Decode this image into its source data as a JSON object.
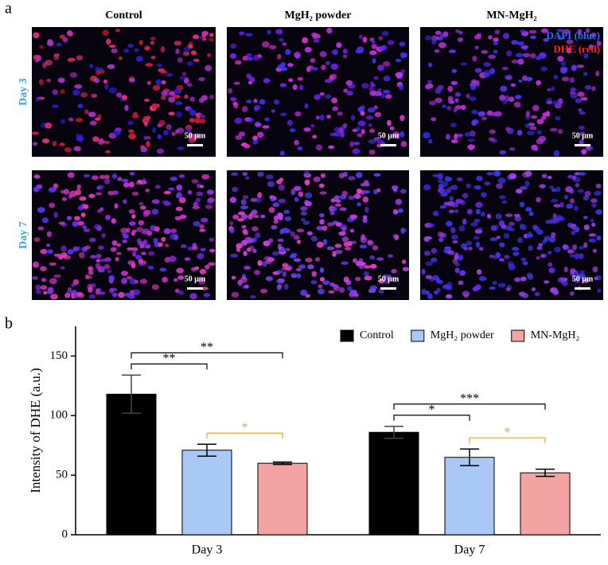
{
  "panel_a": {
    "label": "a",
    "columns": [
      "Control",
      "MgH₂ powder",
      "MN-MgH₂"
    ],
    "rows": [
      "Day 3",
      "Day 7"
    ],
    "legend": [
      "DAPI (blue)",
      "DHE (red)"
    ],
    "scale_bar": "50 μm"
  },
  "chart_data": {
    "type": "bar",
    "panel_label": "b",
    "ylabel": "Intensity of DHE (a.u.)",
    "categories": [
      "Day 3",
      "Day 7"
    ],
    "series": [
      {
        "name": "Control",
        "color": "#000000",
        "values": [
          118,
          86
        ],
        "errors": [
          16,
          5
        ]
      },
      {
        "name": "MgH₂ powder",
        "color": "#a9c8f4",
        "values": [
          71,
          65
        ],
        "errors": [
          5,
          7
        ]
      },
      {
        "name": "MN-MgH₂",
        "color": "#f4a3a3",
        "values": [
          60,
          52
        ],
        "errors": [
          1,
          3
        ]
      }
    ],
    "ylim": [
      0,
      175
    ],
    "yticks": [
      0,
      50,
      100,
      150
    ],
    "annotations": [
      {
        "text": "*",
        "category": 0,
        "from": 1,
        "to": 2,
        "color": "#f0a030"
      },
      {
        "text": "**",
        "category": 0,
        "from": 0,
        "to": 1,
        "color": "#000000"
      },
      {
        "text": "**",
        "category": 0,
        "from": 0,
        "to": 2,
        "color": "#000000"
      },
      {
        "text": "*",
        "category": 1,
        "from": 1,
        "to": 2,
        "color": "#f0a030"
      },
      {
        "text": "*",
        "category": 1,
        "from": 0,
        "to": 1,
        "color": "#000000"
      },
      {
        "text": "***",
        "category": 1,
        "from": 0,
        "to": 2,
        "color": "#000000"
      }
    ]
  }
}
